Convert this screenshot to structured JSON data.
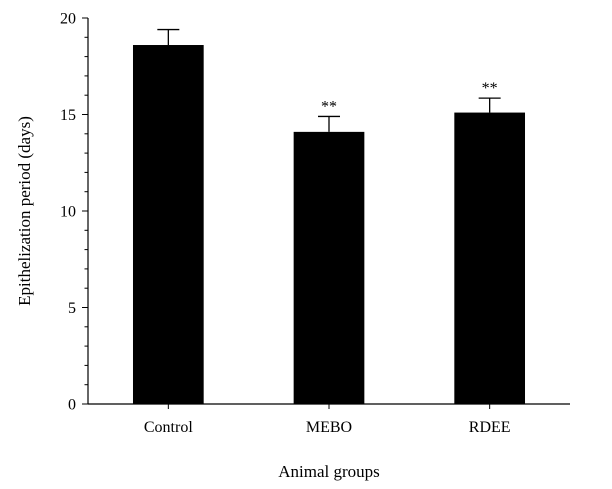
{
  "chart_data": {
    "type": "bar",
    "title": "",
    "xlabel": "Animal groups",
    "ylabel": "Epithelization period (days)",
    "ylim": [
      0,
      20
    ],
    "yticks": [
      0,
      5,
      10,
      15,
      20
    ],
    "y_minor_tick_step": 1,
    "grid": false,
    "legend": "none",
    "categories": [
      "Control",
      "MEBO",
      "RDEE"
    ],
    "values": [
      18.6,
      14.1,
      15.1
    ],
    "error": [
      0.8,
      0.8,
      0.75
    ],
    "significance": [
      "",
      "**",
      "**"
    ],
    "bar_color": "#000000"
  }
}
